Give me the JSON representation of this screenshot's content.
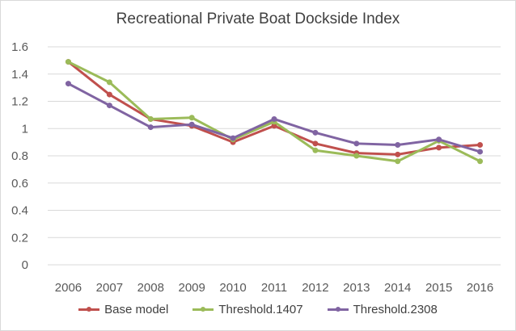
{
  "chart_data": {
    "type": "line",
    "title": "Recreational Private Boat Dockside Index",
    "xlabel": "",
    "ylabel": "",
    "categories": [
      "2006",
      "2007",
      "2008",
      "2009",
      "2010",
      "2011",
      "2012",
      "2013",
      "2014",
      "2015",
      "2016"
    ],
    "ylim": [
      0,
      1.6
    ],
    "yticks": [
      "0",
      "0.2",
      "0.4",
      "0.6",
      "0.8",
      "1",
      "1.2",
      "1.4",
      "1.6"
    ],
    "grid": true,
    "legend_position": "bottom",
    "series": [
      {
        "name": "Base model",
        "color": "#c0504d",
        "values": [
          1.49,
          1.25,
          1.07,
          1.02,
          0.9,
          1.02,
          0.89,
          0.82,
          0.81,
          0.86,
          0.88
        ]
      },
      {
        "name": "Threshold.1407",
        "color": "#9bbb59",
        "values": [
          1.49,
          1.34,
          1.07,
          1.08,
          0.92,
          1.05,
          0.84,
          0.8,
          0.76,
          0.91,
          0.76
        ]
      },
      {
        "name": "Threshold.2308",
        "color": "#8064a2",
        "values": [
          1.33,
          1.17,
          1.01,
          1.03,
          0.93,
          1.07,
          0.97,
          0.89,
          0.88,
          0.92,
          0.83
        ]
      }
    ]
  }
}
